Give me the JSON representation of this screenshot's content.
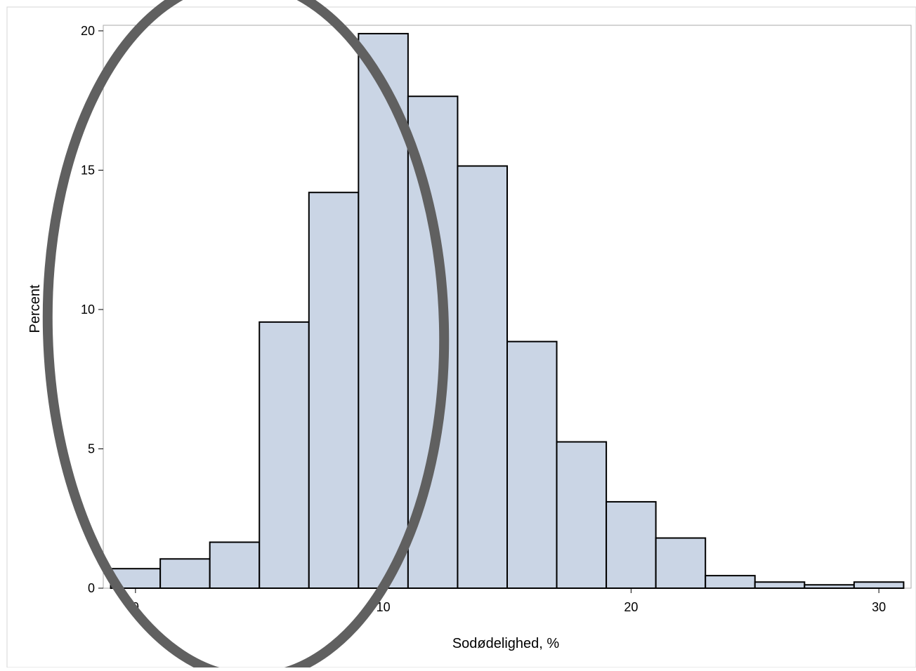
{
  "chart_data": {
    "type": "bar",
    "histogram": true,
    "bin_width": 2,
    "bins": [
      {
        "start": -1,
        "end": 1,
        "value": 0.7
      },
      {
        "start": 1,
        "end": 3,
        "value": 1.05
      },
      {
        "start": 3,
        "end": 5,
        "value": 1.65
      },
      {
        "start": 5,
        "end": 7,
        "value": 9.55
      },
      {
        "start": 7,
        "end": 9,
        "value": 14.2
      },
      {
        "start": 9,
        "end": 11,
        "value": 19.9
      },
      {
        "start": 11,
        "end": 13,
        "value": 17.65
      },
      {
        "start": 13,
        "end": 15,
        "value": 15.15
      },
      {
        "start": 15,
        "end": 17,
        "value": 8.85
      },
      {
        "start": 17,
        "end": 19,
        "value": 5.25
      },
      {
        "start": 19,
        "end": 21,
        "value": 3.1
      },
      {
        "start": 21,
        "end": 23,
        "value": 1.8
      },
      {
        "start": 23,
        "end": 25,
        "value": 0.45
      },
      {
        "start": 25,
        "end": 27,
        "value": 0.22
      },
      {
        "start": 27,
        "end": 29,
        "value": 0.12
      },
      {
        "start": 29,
        "end": 31,
        "value": 0.22
      }
    ],
    "xlabel": "Sodødelighed, %",
    "ylabel": "Percent",
    "xlim": [
      -1.3,
      31.3
    ],
    "ylim": [
      0,
      20.2
    ],
    "xticks": [
      0,
      10,
      20,
      30
    ],
    "xtick_labels": [
      "0",
      "10",
      "20",
      "30"
    ],
    "yticks": [
      0,
      5,
      10,
      15,
      20
    ],
    "ytick_labels": [
      "0",
      "5",
      "10",
      "15",
      "20"
    ],
    "grid": false,
    "legend": "none",
    "colors": {
      "bar_fill": "#cad5e5",
      "bar_stroke": "#000000",
      "frame": "#aaaaaa",
      "annotation_ellipse": "#606060"
    },
    "annotation": {
      "shape": "ellipse",
      "description_visible": false
    }
  }
}
